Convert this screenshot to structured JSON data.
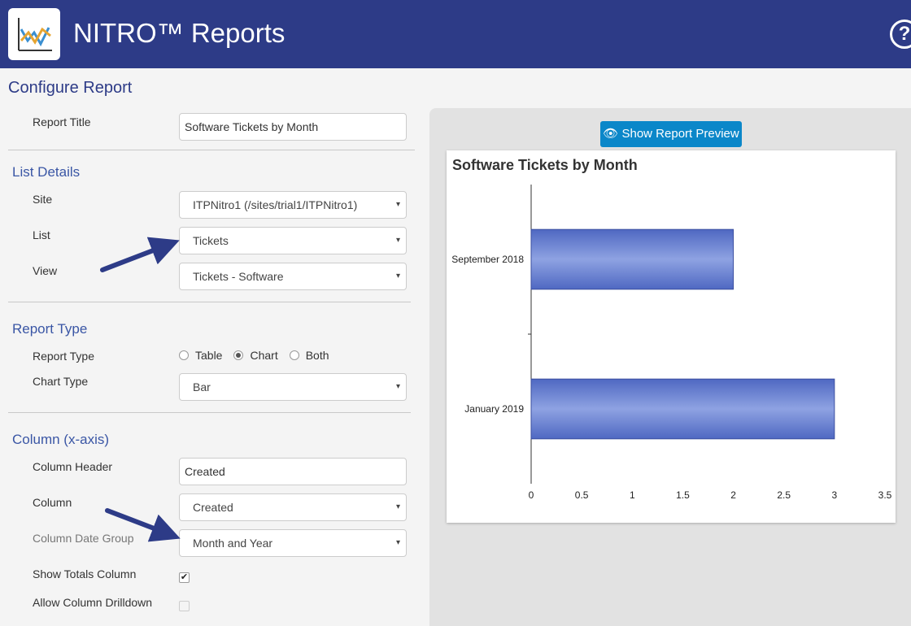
{
  "header": {
    "app_title": "NITRO™ Reports",
    "help_symbol": "?",
    "logo_icon": "line-chart-icon"
  },
  "page_title": "Configure Report",
  "report_title": {
    "label": "Report Title",
    "value": "Software Tickets by Month"
  },
  "list_details": {
    "heading": "List Details",
    "site": {
      "label": "Site",
      "value": "ITPNitro1 (/sites/trial1/ITPNitro1)"
    },
    "list": {
      "label": "List",
      "value": "Tickets"
    },
    "view": {
      "label": "View",
      "value": "Tickets - Software"
    }
  },
  "report_type": {
    "heading": "Report Type",
    "label": "Report Type",
    "options": [
      "Table",
      "Chart",
      "Both"
    ],
    "selected": "Chart",
    "chart_type": {
      "label": "Chart Type",
      "value": "Bar"
    }
  },
  "column": {
    "heading": "Column (x-axis)",
    "header": {
      "label": "Column Header",
      "value": "Created"
    },
    "column": {
      "label": "Column",
      "value": "Created"
    },
    "date_group": {
      "label": "Column Date Group",
      "value": "Month and Year"
    },
    "show_totals": {
      "label": "Show Totals Column",
      "checked": true
    },
    "allow_drilldown": {
      "label": "Allow Column Drilldown",
      "checked": false
    }
  },
  "preview": {
    "button_label": "Show Report Preview",
    "button_icon": "eye-icon"
  },
  "chart_data": {
    "type": "bar",
    "orientation": "horizontal",
    "title": "Software Tickets by Month",
    "categories": [
      "September 2018",
      "January 2019"
    ],
    "values": [
      2,
      3
    ],
    "xlim": [
      0,
      3.5
    ],
    "ticks": [
      "0",
      "0.5",
      "1",
      "1.5",
      "2",
      "2.5",
      "3",
      "3.5"
    ],
    "grid": false,
    "bar_color": "#6a82d0",
    "caret_symbol": "▾",
    "check_symbol": "✔"
  }
}
